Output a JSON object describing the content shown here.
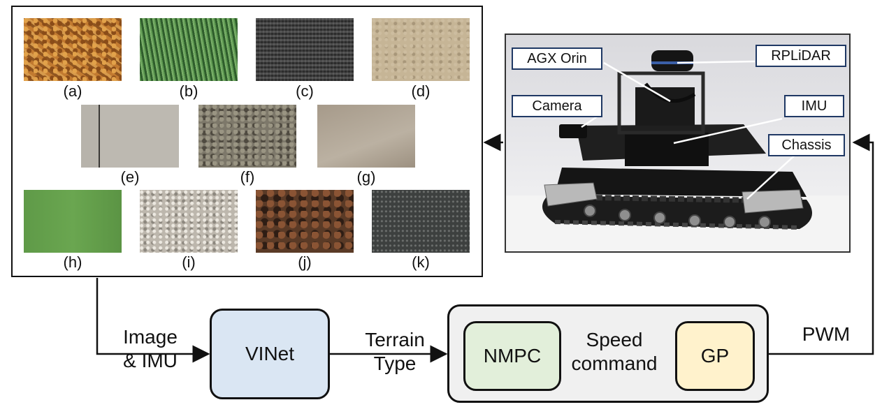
{
  "terrain_panel": {
    "tiles": [
      {
        "caption": "(a)"
      },
      {
        "caption": "(b)"
      },
      {
        "caption": "(c)"
      },
      {
        "caption": "(d)"
      },
      {
        "caption": "(e)"
      },
      {
        "caption": "(f)"
      },
      {
        "caption": "(g)"
      },
      {
        "caption": "(h)"
      },
      {
        "caption": "(i)"
      },
      {
        "caption": "(j)"
      },
      {
        "caption": "(k)"
      }
    ]
  },
  "robot_photo": {
    "callouts": {
      "agx": "AGX Orin",
      "rplidar": "RPLiDAR",
      "camera": "Camera",
      "imu": "IMU",
      "chassis": "Chassis"
    }
  },
  "pipeline": {
    "input_label_line1": "Image",
    "input_label_line2": "& IMU",
    "vinet": "VINet",
    "terrain_label_line1": "Terrain",
    "terrain_label_line2": "Type",
    "nmpc": "NMPC",
    "speed_label_line1": "Speed",
    "speed_label_line2": "command",
    "gp": "GP",
    "pwm_label": "PWM"
  },
  "colors": {
    "vinet_fill": "#dae6f3",
    "nmpc_fill": "#e2efda",
    "gp_fill": "#fff2cc",
    "controller_fill": "#f0f0f0",
    "callout_border": "#1f3864"
  }
}
